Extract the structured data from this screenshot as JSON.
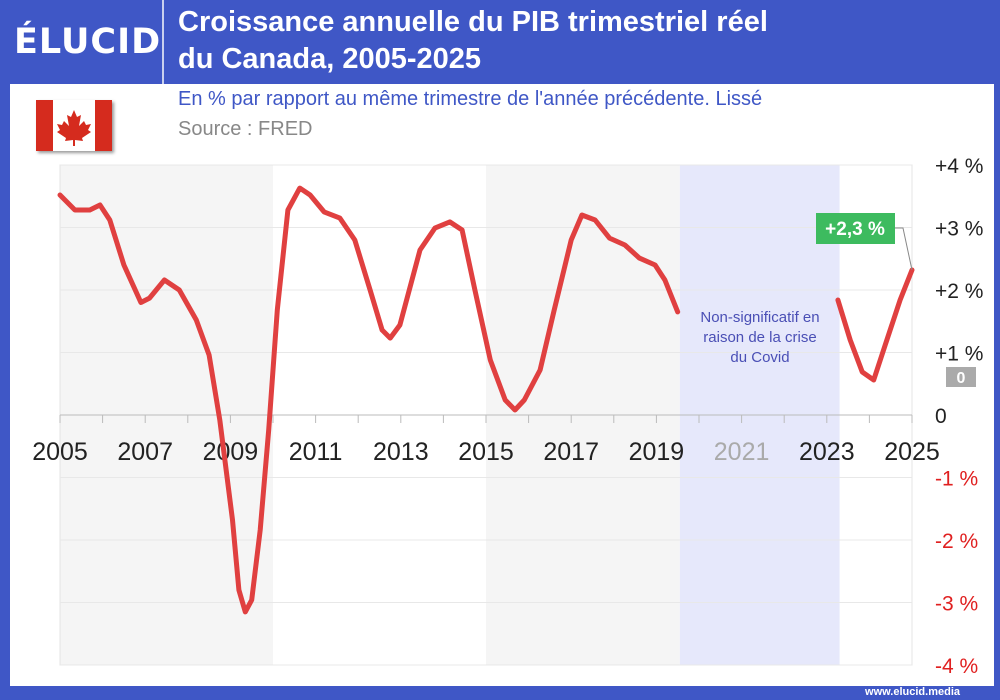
{
  "header": {
    "logo": "ÉLUCID",
    "title_line1": "Croissance annuelle du PIB trimestriel réel",
    "title_line2": "du Canada, 2005-2025"
  },
  "subtitle": "En % par rapport au même trimestre de l'année précédente. Lissé",
  "source": "Source : FRED",
  "footer": "www.elucid.media",
  "colors": {
    "brand": "#3f57c6",
    "line": "#e04040",
    "covid_band": "#e6e8fb",
    "band_gray": "#f5f5f5",
    "label_green": "#3dbb5f",
    "negative": "#e02020"
  },
  "chart_data": {
    "type": "line",
    "title": "Croissance annuelle du PIB trimestriel réel du Canada, 2005-2025",
    "xlim": [
      2005,
      2025
    ],
    "ylim": [
      -4,
      4
    ],
    "x_ticks": [
      "2005",
      "2007",
      "2009",
      "2011",
      "2013",
      "2015",
      "2017",
      "2019",
      "2021",
      "2023",
      "2025"
    ],
    "y_ticks": [
      "+4 %",
      "+3 %",
      "+2 %",
      "+1 %",
      "0",
      "-1 %",
      "-2 %",
      "-3 %",
      "-4 %"
    ],
    "y_tick_values": [
      4,
      3,
      2,
      1,
      0,
      -1,
      -2,
      -3,
      -4
    ],
    "grid": true,
    "segments": [
      {
        "x": [
          2005,
          2005.35,
          2005.7,
          2005.94,
          2006.17,
          2006.5,
          2006.9,
          2007.1,
          2007.45,
          2007.8,
          2008.2,
          2008.5,
          2008.75,
          2009.05,
          2009.2,
          2009.35,
          2009.5,
          2009.7,
          2009.9,
          2010.1,
          2010.35,
          2010.63,
          2010.87,
          2011.2,
          2011.57,
          2011.92,
          2012.28,
          2012.56,
          2012.75,
          2012.98,
          2013.45,
          2013.8,
          2014.15,
          2014.44,
          2014.74,
          2015.1,
          2015.45,
          2015.68,
          2015.9,
          2016.27,
          2016.6,
          2017.0,
          2017.25,
          2017.56,
          2017.9,
          2018.26,
          2018.6,
          2018.97,
          2019.2,
          2019.5
        ],
        "y": [
          3.52,
          3.28,
          3.28,
          3.36,
          3.12,
          2.4,
          1.8,
          1.87,
          2.16,
          2.0,
          1.52,
          0.96,
          -0.08,
          -1.68,
          -2.8,
          -3.15,
          -2.96,
          -1.84,
          -0.24,
          1.68,
          3.28,
          3.63,
          3.52,
          3.25,
          3.15,
          2.8,
          2.0,
          1.36,
          1.23,
          1.44,
          2.64,
          2.99,
          3.09,
          2.96,
          2.0,
          0.88,
          0.24,
          0.08,
          0.24,
          0.72,
          1.68,
          2.8,
          3.2,
          3.12,
          2.83,
          2.72,
          2.51,
          2.4,
          2.16,
          1.65
        ]
      },
      {
        "x": [
          2023.26,
          2023.55,
          2023.83,
          2024.1,
          2024.37,
          2024.72,
          2025
        ],
        "y": [
          1.84,
          1.2,
          0.69,
          0.56,
          1.12,
          1.84,
          2.32
        ]
      }
    ],
    "shaded_regions": [
      {
        "from": 2005,
        "to": 2010,
        "kind": "gray"
      },
      {
        "from": 2015,
        "to": 2019.55,
        "kind": "gray"
      },
      {
        "from": 2019.55,
        "to": 2023.3,
        "kind": "covid"
      }
    ],
    "annotations": {
      "covid_note": "Non-significatif en raison de la crise du Covid",
      "last_value": "+2,3 %",
      "zero_badge": "0"
    }
  }
}
